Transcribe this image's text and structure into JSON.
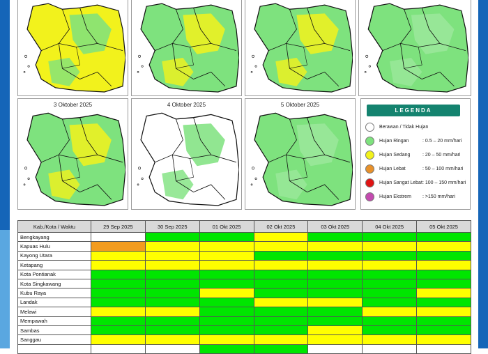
{
  "maps": [
    {
      "title": ""
    },
    {
      "title": ""
    },
    {
      "title": ""
    },
    {
      "title": ""
    },
    {
      "title": "3 Oktober 2025"
    },
    {
      "title": "4 Oktober 2025"
    },
    {
      "title": "5 Oktober 2025"
    }
  ],
  "legend": {
    "title": "LEGENDA",
    "items": [
      {
        "label": "Berawan / Tidak Hujan",
        "range": "",
        "color": "#ffffff"
      },
      {
        "label": "Hujan Ringan",
        "range": ": 0.5 – 20 mm/hari",
        "color": "#7ee27e"
      },
      {
        "label": "Hujan Sedang",
        "range": ": 20 – 50 mm/hari",
        "color": "#f2f21c"
      },
      {
        "label": "Hujan Lebat",
        "range": ": 50 – 100 mm/hari",
        "color": "#e8912a"
      },
      {
        "label": "Hujan Sangat Lebat",
        "range": ": 100 – 150 mm/hari",
        "color": "#e01414"
      },
      {
        "label": "Hujan Ekstrem",
        "range": ": >150 mm/hari",
        "color": "#c44bb0"
      }
    ]
  },
  "table": {
    "header_region": "Kab./Kota / Waktu",
    "dates": [
      "29 Sep 2025",
      "30 Sep 2025",
      "01 Okt 2025",
      "02 Okt 2025",
      "03 Okt 2025",
      "04 Okt 2025",
      "05 Okt 2025"
    ],
    "rows": [
      {
        "region": "Bengkayang",
        "cells": [
          "white",
          "green",
          "green",
          "yellow",
          "green",
          "green",
          "green"
        ]
      },
      {
        "region": "Kapuas Hulu",
        "cells": [
          "orange",
          "yellow",
          "yellow",
          "yellow",
          "yellow",
          "yellow",
          "yellow"
        ]
      },
      {
        "region": "Kayong Utara",
        "cells": [
          "yellow",
          "yellow",
          "yellow",
          "green",
          "green",
          "green",
          "green"
        ]
      },
      {
        "region": "Ketapang",
        "cells": [
          "yellow",
          "yellow",
          "yellow",
          "yellow",
          "yellow",
          "yellow",
          "yellow"
        ]
      },
      {
        "region": "Kota Pontianak",
        "cells": [
          "green",
          "green",
          "green",
          "green",
          "green",
          "green",
          "green"
        ]
      },
      {
        "region": "Kota Singkawang",
        "cells": [
          "green",
          "green",
          "green",
          "green",
          "green",
          "green",
          "green"
        ]
      },
      {
        "region": "Kubu Raya",
        "cells": [
          "green",
          "green",
          "yellow",
          "green",
          "green",
          "green",
          "yellow"
        ]
      },
      {
        "region": "Landak",
        "cells": [
          "green",
          "green",
          "green",
          "yellow",
          "yellow",
          "green",
          "green"
        ]
      },
      {
        "region": "Melawi",
        "cells": [
          "yellow",
          "yellow",
          "green",
          "green",
          "green",
          "yellow",
          "yellow"
        ]
      },
      {
        "region": "Mempawah",
        "cells": [
          "green",
          "green",
          "green",
          "green",
          "green",
          "green",
          "green"
        ]
      },
      {
        "region": "Sambas",
        "cells": [
          "green",
          "green",
          "green",
          "green",
          "yellow",
          "green",
          "green"
        ]
      },
      {
        "region": "Sanggau",
        "cells": [
          "yellow",
          "yellow",
          "yellow",
          "yellow",
          "yellow",
          "yellow",
          "yellow"
        ]
      },
      {
        "region": "",
        "cells": [
          "white",
          "white",
          "green",
          "green",
          "white",
          "white",
          "white"
        ]
      }
    ]
  },
  "colors": {
    "frame": "#1565b8",
    "legend_header": "#14836f"
  }
}
